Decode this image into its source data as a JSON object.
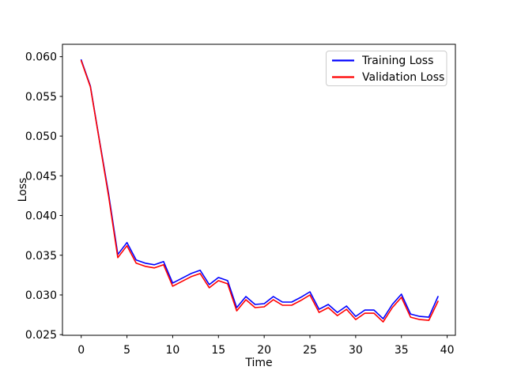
{
  "chart_data": {
    "type": "line",
    "title": "",
    "xlabel": "Time",
    "ylabel": "Loss",
    "xlim": [
      -2.05,
      40.9
    ],
    "ylim": [
      0.02492,
      0.06156
    ],
    "xticks": [
      0,
      5,
      10,
      15,
      20,
      25,
      30,
      35,
      40
    ],
    "xtick_labels": [
      "0",
      "5",
      "10",
      "15",
      "20",
      "25",
      "30",
      "35",
      "40"
    ],
    "yticks": [
      0.025,
      0.03,
      0.035,
      0.04,
      0.045,
      0.05,
      0.055,
      0.06
    ],
    "ytick_labels": [
      "0.025",
      "0.030",
      "0.035",
      "0.040",
      "0.045",
      "0.050",
      "0.055",
      "0.060"
    ],
    "grid": false,
    "colors": {
      "background": "#ffffff",
      "axes": "#000000",
      "legend_border": "#cccccc"
    },
    "legend": {
      "position": "upper right",
      "entries": [
        "Training Loss",
        "Validation Loss"
      ]
    },
    "x": [
      0,
      1,
      2,
      3,
      4,
      5,
      6,
      7,
      8,
      9,
      10,
      11,
      12,
      13,
      14,
      15,
      16,
      17,
      18,
      19,
      20,
      21,
      22,
      23,
      24,
      25,
      26,
      27,
      28,
      29,
      30,
      31,
      32,
      33,
      34,
      35,
      36,
      37,
      38,
      39
    ],
    "series": [
      {
        "name": "Training Loss",
        "color": "#0000ff",
        "values": [
          0.0596,
          0.0563,
          0.0494,
          0.0427,
          0.0351,
          0.0366,
          0.0344,
          0.034,
          0.0338,
          0.0342,
          0.0315,
          0.0321,
          0.0327,
          0.0331,
          0.0313,
          0.0322,
          0.0318,
          0.0284,
          0.0298,
          0.0288,
          0.0289,
          0.0298,
          0.0291,
          0.0291,
          0.0297,
          0.0304,
          0.0282,
          0.0288,
          0.0278,
          0.0286,
          0.0273,
          0.0281,
          0.0281,
          0.027,
          0.0288,
          0.0301,
          0.0276,
          0.0273,
          0.0272,
          0.0298
        ]
      },
      {
        "name": "Validation Loss",
        "color": "#ff0000",
        "values": [
          0.0595,
          0.0562,
          0.0493,
          0.0424,
          0.0347,
          0.0362,
          0.034,
          0.0336,
          0.0334,
          0.0338,
          0.0311,
          0.0317,
          0.0323,
          0.0327,
          0.0309,
          0.0318,
          0.0314,
          0.028,
          0.0294,
          0.0284,
          0.0285,
          0.0294,
          0.0287,
          0.0287,
          0.0293,
          0.03,
          0.0278,
          0.0284,
          0.0274,
          0.0282,
          0.0269,
          0.0277,
          0.0277,
          0.0266,
          0.0284,
          0.0297,
          0.0272,
          0.0269,
          0.0268,
          0.0292
        ]
      }
    ]
  }
}
